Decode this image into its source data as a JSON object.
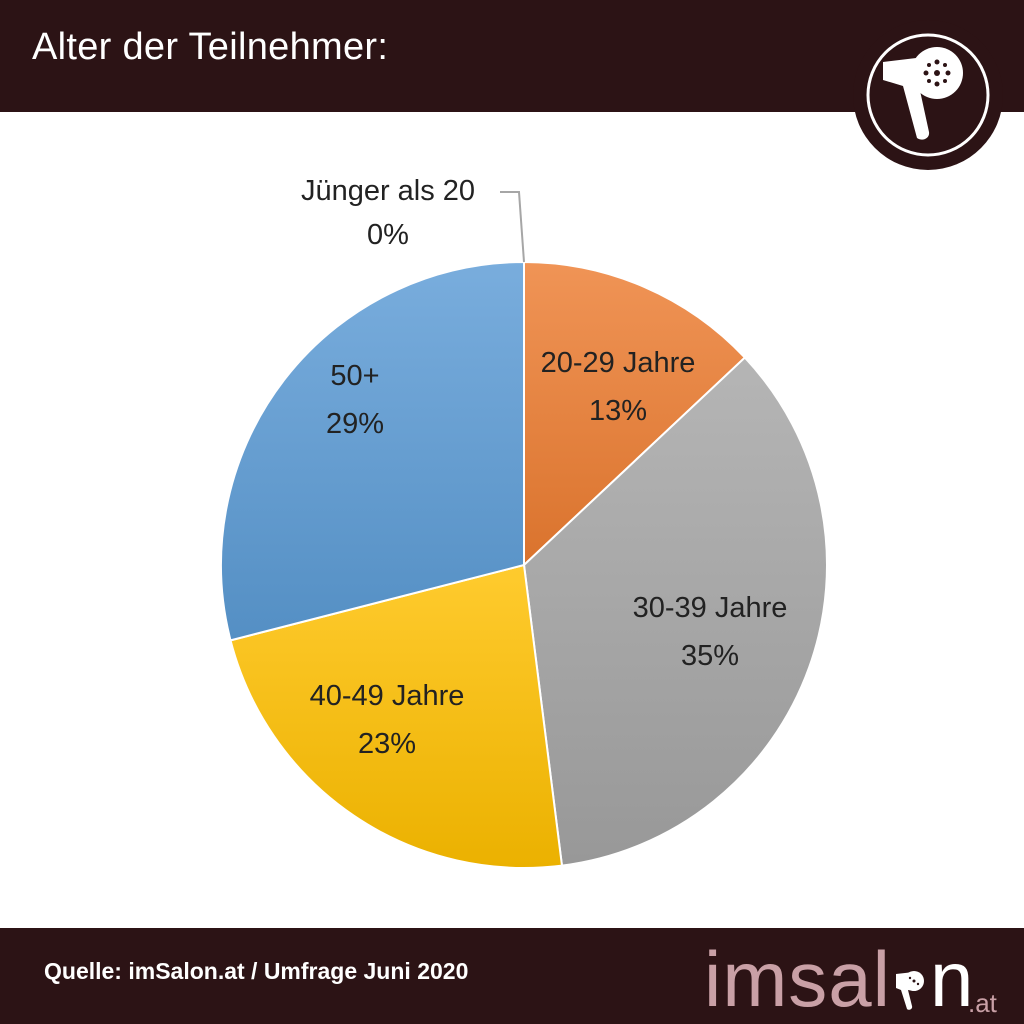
{
  "header": {
    "title": "Alter der Teilnehmer:"
  },
  "footer": {
    "source": "Quelle: imSalon.at / Umfrage Juni 2020",
    "brand_main": "imsal",
    "brand_suffix": "n",
    "brand_tld": ".at"
  },
  "colors": {
    "bar_background": "#2c1315",
    "brand_pink": "#c9a0a6"
  },
  "icons": {
    "header_logo": "hair-dryer-icon",
    "brand_logo": "hair-dryer-icon"
  },
  "chart_data": {
    "type": "pie",
    "title": "Alter der Teilnehmer:",
    "slices": [
      {
        "label": "Jünger als 20",
        "value": 0,
        "value_label": "0%",
        "color": "#5b9bd5"
      },
      {
        "label": "20-29 Jahre",
        "value": 13,
        "value_label": "13%",
        "color": "#ed7d31"
      },
      {
        "label": "30-39 Jahre",
        "value": 35,
        "value_label": "35%",
        "color": "#a5a5a5"
      },
      {
        "label": "40-49 Jahre",
        "value": 23,
        "value_label": "23%",
        "color": "#ffc000"
      },
      {
        "label": "50+",
        "value": 29,
        "value_label": "29%",
        "color": "#5b9bd5"
      }
    ],
    "start_angle": "12 o'clock",
    "direction": "clockwise",
    "legend": "none"
  }
}
